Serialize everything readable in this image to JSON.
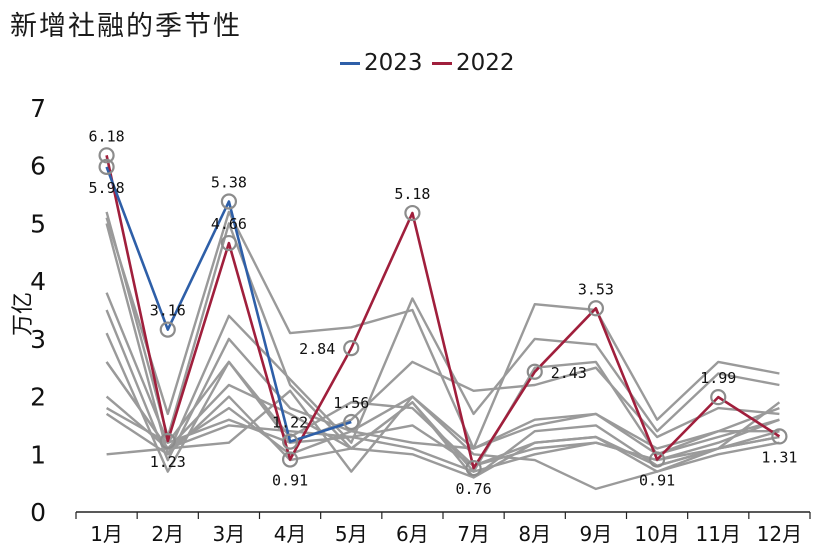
{
  "chart_data": {
    "type": "line",
    "title": "新增社融的季节性",
    "ylabel": "万亿",
    "xlabel": "",
    "categories": [
      "1月",
      "2月",
      "3月",
      "4月",
      "5月",
      "6月",
      "7月",
      "8月",
      "9月",
      "10月",
      "11月",
      "12月"
    ],
    "ylim": [
      0,
      7
    ],
    "yticks": [
      "0",
      "1",
      "2",
      "3",
      "4",
      "5",
      "6",
      "7"
    ],
    "grid": false,
    "legend": {
      "position": "top-center",
      "entries": [
        {
          "name": "2023",
          "color": "#2e5fa8"
        },
        {
          "name": "2022",
          "color": "#a01f3c"
        }
      ]
    },
    "series": [
      {
        "name": "2023",
        "color": "#2e5fa8",
        "values": [
          5.98,
          3.16,
          5.38,
          1.22,
          1.56,
          null,
          null,
          null,
          null,
          null,
          null,
          null
        ]
      },
      {
        "name": "2022",
        "color": "#a01f3c",
        "values": [
          6.18,
          1.23,
          4.66,
          0.91,
          2.84,
          5.18,
          0.76,
          2.43,
          3.53,
          0.91,
          1.99,
          1.31
        ]
      }
    ],
    "background_series": {
      "color": "#9a9a9a",
      "lines": [
        [
          5.2,
          1.3,
          5.0,
          2.2,
          1.1,
          1.9,
          0.7,
          2.5,
          2.6,
          1.0,
          1.3,
          1.6
        ],
        [
          5.1,
          1.7,
          5.2,
          3.1,
          3.2,
          3.5,
          1.1,
          3.6,
          3.5,
          1.6,
          2.6,
          2.4
        ],
        [
          5.0,
          1.0,
          3.4,
          2.3,
          1.2,
          3.7,
          1.7,
          3.0,
          2.9,
          1.4,
          2.4,
          2.2
        ],
        [
          3.8,
          1.2,
          2.6,
          1.2,
          1.6,
          2.6,
          2.1,
          2.2,
          2.5,
          1.3,
          1.8,
          1.7
        ],
        [
          3.5,
          0.9,
          3.0,
          1.8,
          1.4,
          2.0,
          1.1,
          1.6,
          1.7,
          1.0,
          1.4,
          1.8
        ],
        [
          3.1,
          0.7,
          2.6,
          1.3,
          1.9,
          1.8,
          0.8,
          1.2,
          1.3,
          0.7,
          1.0,
          1.2
        ],
        [
          2.6,
          1.1,
          2.2,
          1.7,
          1.1,
          1.9,
          0.6,
          1.4,
          1.5,
          0.8,
          1.1,
          1.3
        ],
        [
          2.0,
          1.1,
          1.8,
          1.0,
          1.4,
          1.2,
          1.1,
          1.5,
          1.7,
          1.1,
          1.4,
          1.4
        ],
        [
          1.8,
          1.2,
          1.6,
          1.2,
          1.3,
          1.5,
          0.8,
          1.1,
          1.2,
          0.9,
          1.1,
          1.3
        ],
        [
          1.0,
          1.1,
          1.2,
          2.1,
          0.7,
          2.0,
          1.0,
          0.9,
          0.4,
          0.7,
          1.1,
          1.9
        ],
        [
          2.6,
          1.1,
          1.5,
          1.4,
          1.3,
          1.1,
          0.7,
          1.0,
          1.2,
          0.9,
          1.2,
          1.6
        ],
        [
          1.7,
          1.0,
          2.0,
          0.9,
          1.1,
          1.0,
          0.6,
          1.2,
          1.3,
          0.8,
          1.1,
          1.4
        ]
      ]
    },
    "annotations": [
      {
        "text": "6.18",
        "series": "2022",
        "index": 0,
        "pos": "above"
      },
      {
        "text": "5.98",
        "series": "2023",
        "index": 0,
        "pos": "below"
      },
      {
        "text": "3.16",
        "series": "2023",
        "index": 1,
        "pos": "above"
      },
      {
        "text": "1.23",
        "series": "2022",
        "index": 1,
        "pos": "below"
      },
      {
        "text": "5.38",
        "series": "2023",
        "index": 2,
        "pos": "above"
      },
      {
        "text": "4.66",
        "series": "2022",
        "index": 2,
        "pos": "above"
      },
      {
        "text": "1.22",
        "series": "2023",
        "index": 3,
        "pos": "above"
      },
      {
        "text": "0.91",
        "series": "2022",
        "index": 3,
        "pos": "below"
      },
      {
        "text": "1.56",
        "series": "2023",
        "index": 4,
        "pos": "above"
      },
      {
        "text": "2.84",
        "series": "2022",
        "index": 4,
        "pos": "left"
      },
      {
        "text": "5.18",
        "series": "2022",
        "index": 5,
        "pos": "above"
      },
      {
        "text": "0.76",
        "series": "2022",
        "index": 6,
        "pos": "below"
      },
      {
        "text": "2.43",
        "series": "2022",
        "index": 7,
        "pos": "right"
      },
      {
        "text": "3.53",
        "series": "2022",
        "index": 8,
        "pos": "above"
      },
      {
        "text": "0.91",
        "series": "2022",
        "index": 9,
        "pos": "below"
      },
      {
        "text": "1.99",
        "series": "2022",
        "index": 10,
        "pos": "above"
      },
      {
        "text": "1.31",
        "series": "2022",
        "index": 11,
        "pos": "below"
      }
    ]
  }
}
